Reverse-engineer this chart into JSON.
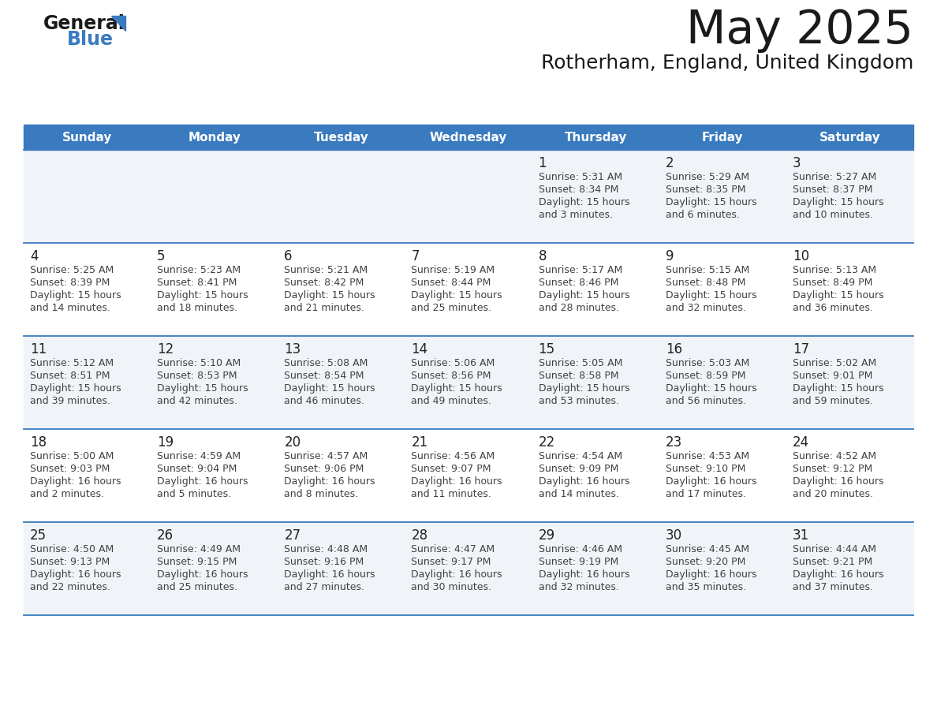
{
  "title": "May 2025",
  "subtitle": "Rotherham, England, United Kingdom",
  "header_color": "#3a7abf",
  "header_text_color": "#ffffff",
  "day_names": [
    "Sunday",
    "Monday",
    "Tuesday",
    "Wednesday",
    "Thursday",
    "Friday",
    "Saturday"
  ],
  "row_bg_even": "#f0f4f8",
  "row_bg_odd": "#ffffff",
  "border_color": "#3a7abf",
  "text_color": "#404040",
  "day_num_color": "#222222",
  "title_color": "#1a1a1a",
  "subtitle_color": "#1a1a1a",
  "calendar": [
    [
      null,
      null,
      null,
      null,
      {
        "day": 1,
        "sunrise": "5:31 AM",
        "sunset": "8:34 PM",
        "daylight": "15 hours",
        "daylight2": "and 3 minutes."
      },
      {
        "day": 2,
        "sunrise": "5:29 AM",
        "sunset": "8:35 PM",
        "daylight": "15 hours",
        "daylight2": "and 6 minutes."
      },
      {
        "day": 3,
        "sunrise": "5:27 AM",
        "sunset": "8:37 PM",
        "daylight": "15 hours",
        "daylight2": "and 10 minutes."
      }
    ],
    [
      {
        "day": 4,
        "sunrise": "5:25 AM",
        "sunset": "8:39 PM",
        "daylight": "15 hours",
        "daylight2": "and 14 minutes."
      },
      {
        "day": 5,
        "sunrise": "5:23 AM",
        "sunset": "8:41 PM",
        "daylight": "15 hours",
        "daylight2": "and 18 minutes."
      },
      {
        "day": 6,
        "sunrise": "5:21 AM",
        "sunset": "8:42 PM",
        "daylight": "15 hours",
        "daylight2": "and 21 minutes."
      },
      {
        "day": 7,
        "sunrise": "5:19 AM",
        "sunset": "8:44 PM",
        "daylight": "15 hours",
        "daylight2": "and 25 minutes."
      },
      {
        "day": 8,
        "sunrise": "5:17 AM",
        "sunset": "8:46 PM",
        "daylight": "15 hours",
        "daylight2": "and 28 minutes."
      },
      {
        "day": 9,
        "sunrise": "5:15 AM",
        "sunset": "8:48 PM",
        "daylight": "15 hours",
        "daylight2": "and 32 minutes."
      },
      {
        "day": 10,
        "sunrise": "5:13 AM",
        "sunset": "8:49 PM",
        "daylight": "15 hours",
        "daylight2": "and 36 minutes."
      }
    ],
    [
      {
        "day": 11,
        "sunrise": "5:12 AM",
        "sunset": "8:51 PM",
        "daylight": "15 hours",
        "daylight2": "and 39 minutes."
      },
      {
        "day": 12,
        "sunrise": "5:10 AM",
        "sunset": "8:53 PM",
        "daylight": "15 hours",
        "daylight2": "and 42 minutes."
      },
      {
        "day": 13,
        "sunrise": "5:08 AM",
        "sunset": "8:54 PM",
        "daylight": "15 hours",
        "daylight2": "and 46 minutes."
      },
      {
        "day": 14,
        "sunrise": "5:06 AM",
        "sunset": "8:56 PM",
        "daylight": "15 hours",
        "daylight2": "and 49 minutes."
      },
      {
        "day": 15,
        "sunrise": "5:05 AM",
        "sunset": "8:58 PM",
        "daylight": "15 hours",
        "daylight2": "and 53 minutes."
      },
      {
        "day": 16,
        "sunrise": "5:03 AM",
        "sunset": "8:59 PM",
        "daylight": "15 hours",
        "daylight2": "and 56 minutes."
      },
      {
        "day": 17,
        "sunrise": "5:02 AM",
        "sunset": "9:01 PM",
        "daylight": "15 hours",
        "daylight2": "and 59 minutes."
      }
    ],
    [
      {
        "day": 18,
        "sunrise": "5:00 AM",
        "sunset": "9:03 PM",
        "daylight": "16 hours",
        "daylight2": "and 2 minutes."
      },
      {
        "day": 19,
        "sunrise": "4:59 AM",
        "sunset": "9:04 PM",
        "daylight": "16 hours",
        "daylight2": "and 5 minutes."
      },
      {
        "day": 20,
        "sunrise": "4:57 AM",
        "sunset": "9:06 PM",
        "daylight": "16 hours",
        "daylight2": "and 8 minutes."
      },
      {
        "day": 21,
        "sunrise": "4:56 AM",
        "sunset": "9:07 PM",
        "daylight": "16 hours",
        "daylight2": "and 11 minutes."
      },
      {
        "day": 22,
        "sunrise": "4:54 AM",
        "sunset": "9:09 PM",
        "daylight": "16 hours",
        "daylight2": "and 14 minutes."
      },
      {
        "day": 23,
        "sunrise": "4:53 AM",
        "sunset": "9:10 PM",
        "daylight": "16 hours",
        "daylight2": "and 17 minutes."
      },
      {
        "day": 24,
        "sunrise": "4:52 AM",
        "sunset": "9:12 PM",
        "daylight": "16 hours",
        "daylight2": "and 20 minutes."
      }
    ],
    [
      {
        "day": 25,
        "sunrise": "4:50 AM",
        "sunset": "9:13 PM",
        "daylight": "16 hours",
        "daylight2": "and 22 minutes."
      },
      {
        "day": 26,
        "sunrise": "4:49 AM",
        "sunset": "9:15 PM",
        "daylight": "16 hours",
        "daylight2": "and 25 minutes."
      },
      {
        "day": 27,
        "sunrise": "4:48 AM",
        "sunset": "9:16 PM",
        "daylight": "16 hours",
        "daylight2": "and 27 minutes."
      },
      {
        "day": 28,
        "sunrise": "4:47 AM",
        "sunset": "9:17 PM",
        "daylight": "16 hours",
        "daylight2": "and 30 minutes."
      },
      {
        "day": 29,
        "sunrise": "4:46 AM",
        "sunset": "9:19 PM",
        "daylight": "16 hours",
        "daylight2": "and 32 minutes."
      },
      {
        "day": 30,
        "sunrise": "4:45 AM",
        "sunset": "9:20 PM",
        "daylight": "16 hours",
        "daylight2": "and 35 minutes."
      },
      {
        "day": 31,
        "sunrise": "4:44 AM",
        "sunset": "9:21 PM",
        "daylight": "16 hours",
        "daylight2": "and 37 minutes."
      }
    ]
  ],
  "fig_width": 11.88,
  "fig_height": 9.18,
  "dpi": 100
}
